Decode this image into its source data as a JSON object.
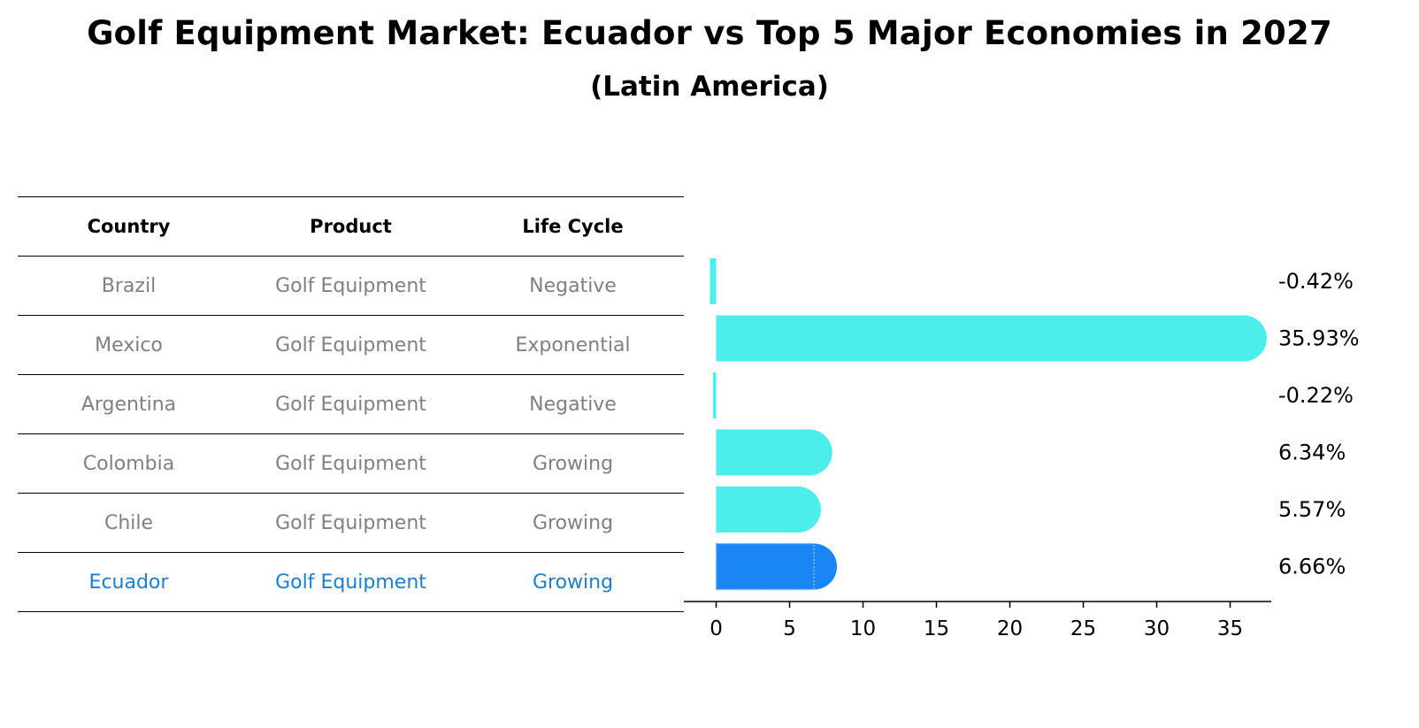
{
  "title": "Golf Equipment Market: Ecuador vs Top 5 Major Economies in 2027",
  "subtitle": "(Latin America)",
  "table": {
    "headers": [
      "Country",
      "Product",
      "Life Cycle"
    ],
    "rows": [
      {
        "country": "Brazil",
        "product": "Golf Equipment",
        "life_cycle": "Negative"
      },
      {
        "country": "Mexico",
        "product": "Golf Equipment",
        "life_cycle": "Exponential"
      },
      {
        "country": "Argentina",
        "product": "Golf Equipment",
        "life_cycle": "Negative"
      },
      {
        "country": "Colombia",
        "product": "Golf Equipment",
        "life_cycle": "Growing"
      },
      {
        "country": "Chile",
        "product": "Golf Equipment",
        "life_cycle": "Growing"
      },
      {
        "country": "Ecuador",
        "product": "Golf Equipment",
        "life_cycle": "Growing"
      }
    ]
  },
  "colors": {
    "bar": "#4beeea",
    "highlight_bar": "#1a85f5",
    "highlight_text": "#1a7fd4",
    "muted_text": "#808080"
  },
  "chart_data": {
    "type": "bar",
    "orientation": "horizontal",
    "categories": [
      "Brazil",
      "Mexico",
      "Argentina",
      "Colombia",
      "Chile",
      "Ecuador"
    ],
    "values": [
      -0.42,
      35.93,
      -0.22,
      6.34,
      5.57,
      6.66
    ],
    "value_labels": [
      "-0.42%",
      "35.93%",
      "-0.22%",
      "6.34%",
      "5.57%",
      "6.66%"
    ],
    "highlight": "Ecuador",
    "xlim": [
      -2.2,
      37.8
    ],
    "xticks": [
      0,
      5,
      10,
      15,
      20,
      25,
      30,
      35
    ],
    "xlabel": "",
    "ylabel": "",
    "grid": false
  }
}
